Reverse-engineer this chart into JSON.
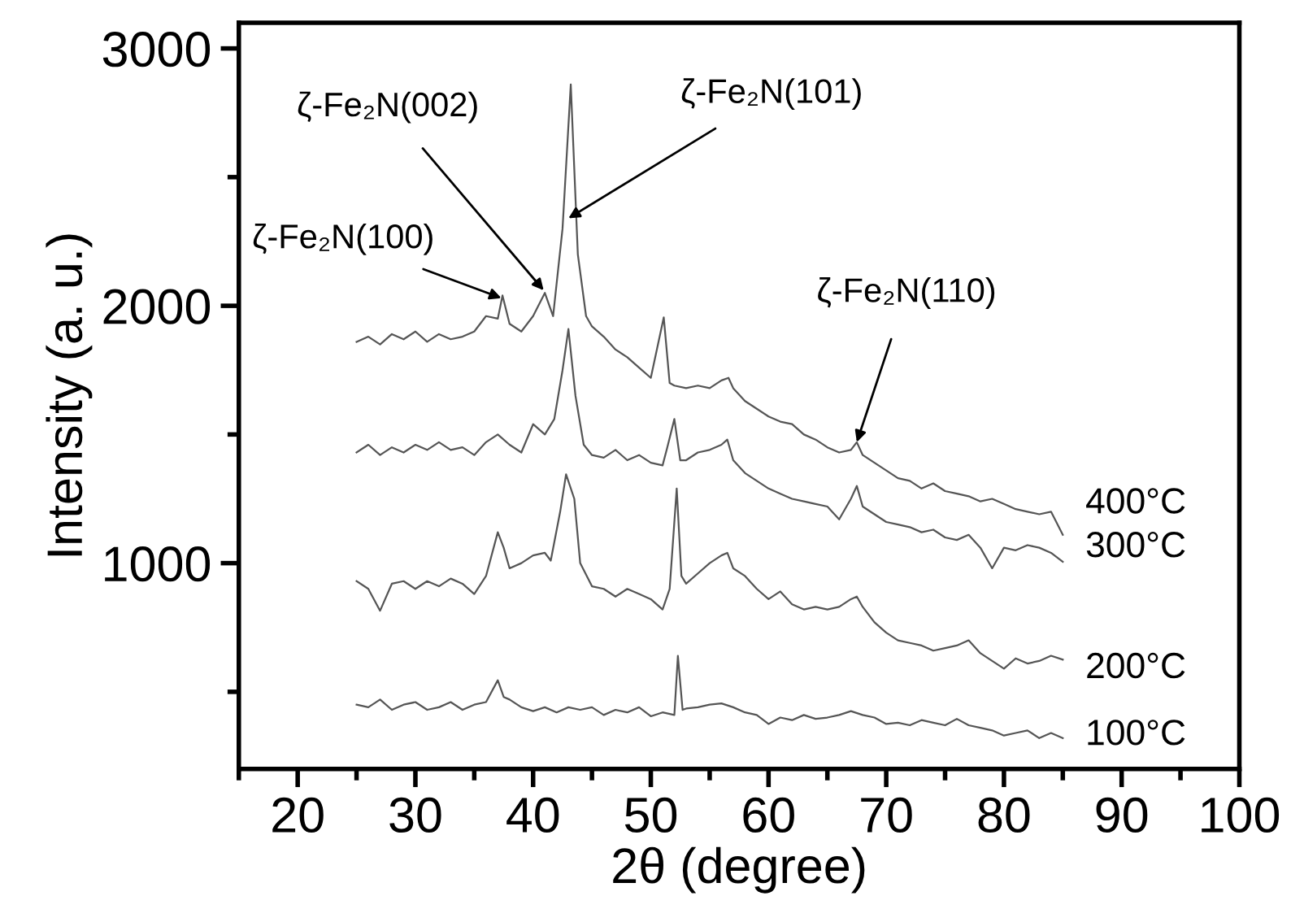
{
  "chart_data": {
    "type": "line",
    "xlabel": "2θ (degree)",
    "ylabel": "Intensity (a. u.)",
    "xlim": [
      15,
      100
    ],
    "xticks": [
      20,
      30,
      40,
      50,
      60,
      70,
      80,
      90,
      100
    ],
    "ylim": [
      200,
      3100
    ],
    "yticks": [
      1000,
      2000,
      3000
    ],
    "grid": false,
    "legend": false,
    "marker": "none",
    "line_style": "solid",
    "annotations": [
      {
        "text": "ζ-Fe₂N(100)",
        "x": 37.3,
        "y": 2030
      },
      {
        "text": "ζ-Fe₂N(002)",
        "x": 40.9,
        "y": 2060
      },
      {
        "text": "ζ-Fe₂N(101)",
        "x": 43.0,
        "y": 2340
      },
      {
        "text": "ζ-Fe₂N(110)",
        "x": 67.5,
        "y": 1470
      }
    ],
    "series": [
      {
        "name": "400°C",
        "color": "#555555",
        "x": [
          25,
          26,
          27,
          28,
          29,
          30,
          31,
          32,
          33,
          34,
          35,
          36,
          37,
          37.4,
          38,
          39,
          40,
          41,
          41.7,
          42.5,
          43.2,
          43.8,
          44.5,
          45,
          46,
          47,
          48,
          49,
          50,
          51.1,
          51.6,
          52,
          53,
          54,
          55,
          56,
          56.6,
          57,
          58,
          59,
          60,
          61,
          62,
          63,
          64,
          65,
          66,
          67,
          67.5,
          68,
          69,
          70,
          71,
          72,
          73,
          74,
          75,
          76,
          77,
          78,
          79,
          80,
          81,
          82,
          83,
          84,
          85
        ],
        "values": [
          1860,
          1880,
          1850,
          1890,
          1870,
          1900,
          1860,
          1890,
          1870,
          1880,
          1900,
          1960,
          1950,
          2040,
          1930,
          1900,
          1960,
          2050,
          1960,
          2300,
          2860,
          2200,
          1960,
          1920,
          1880,
          1830,
          1800,
          1760,
          1720,
          1955,
          1700,
          1690,
          1680,
          1690,
          1680,
          1710,
          1720,
          1680,
          1630,
          1600,
          1570,
          1550,
          1540,
          1500,
          1480,
          1450,
          1430,
          1440,
          1470,
          1420,
          1390,
          1360,
          1330,
          1320,
          1290,
          1310,
          1280,
          1270,
          1260,
          1240,
          1250,
          1230,
          1210,
          1200,
          1190,
          1200,
          1110
        ]
      },
      {
        "name": "300°C",
        "color": "#555555",
        "x": [
          25,
          26,
          27,
          28,
          29,
          30,
          31,
          32,
          33,
          34,
          35,
          36,
          37,
          38,
          39,
          40,
          41,
          41.8,
          42.5,
          43,
          43.6,
          44.3,
          45,
          46,
          47,
          48,
          49,
          50,
          51,
          51.4,
          52,
          52.5,
          53,
          54,
          55,
          56,
          56.5,
          57,
          58,
          59,
          60,
          61,
          62,
          63,
          64,
          65,
          66,
          67,
          67.5,
          68,
          69,
          70,
          71,
          72,
          73,
          74,
          75,
          76,
          77,
          78,
          79,
          80,
          81,
          82,
          83,
          84,
          85
        ],
        "values": [
          1430,
          1460,
          1420,
          1450,
          1430,
          1460,
          1440,
          1470,
          1440,
          1450,
          1420,
          1470,
          1500,
          1460,
          1430,
          1540,
          1500,
          1560,
          1750,
          1910,
          1650,
          1460,
          1420,
          1410,
          1440,
          1400,
          1420,
          1390,
          1380,
          1450,
          1560,
          1400,
          1400,
          1430,
          1440,
          1460,
          1480,
          1400,
          1350,
          1320,
          1290,
          1270,
          1250,
          1240,
          1230,
          1220,
          1170,
          1250,
          1300,
          1220,
          1190,
          1160,
          1150,
          1140,
          1120,
          1130,
          1100,
          1090,
          1110,
          1060,
          980,
          1060,
          1050,
          1070,
          1060,
          1040,
          1005
        ]
      },
      {
        "name": "200°C",
        "color": "#555555",
        "x": [
          25,
          26,
          27,
          28,
          29,
          30,
          31,
          32,
          33,
          34,
          35,
          36,
          37,
          37.5,
          38,
          39,
          40,
          41,
          41.5,
          42.3,
          42.8,
          43.5,
          44,
          45,
          46,
          47,
          48,
          49,
          50,
          51,
          51.6,
          52.2,
          52.6,
          53,
          54,
          55,
          56,
          56.5,
          57,
          58,
          59,
          60,
          61,
          62,
          63,
          64,
          65,
          66,
          67,
          67.5,
          68,
          69,
          70,
          71,
          72,
          73,
          74,
          75,
          76,
          77,
          78,
          79,
          80,
          81,
          82,
          83,
          84,
          85
        ],
        "values": [
          930,
          900,
          815,
          920,
          930,
          900,
          930,
          910,
          940,
          920,
          880,
          950,
          1120,
          1060,
          980,
          1000,
          1030,
          1040,
          1010,
          1200,
          1345,
          1250,
          1000,
          910,
          900,
          870,
          900,
          880,
          860,
          820,
          900,
          1290,
          950,
          920,
          960,
          1000,
          1030,
          1040,
          980,
          950,
          900,
          860,
          890,
          840,
          820,
          830,
          820,
          830,
          860,
          870,
          830,
          770,
          730,
          700,
          690,
          680,
          660,
          670,
          680,
          700,
          650,
          620,
          590,
          630,
          610,
          620,
          640,
          625
        ]
      },
      {
        "name": "100°C",
        "color": "#555555",
        "x": [
          25,
          26,
          27,
          28,
          29,
          30,
          31,
          32,
          33,
          34,
          35,
          36,
          37,
          37.5,
          38,
          39,
          40,
          41,
          42,
          43,
          44,
          45,
          46,
          47,
          48,
          49,
          50,
          51,
          52,
          52.3,
          52.7,
          53,
          54,
          55,
          56,
          57,
          58,
          59,
          60,
          61,
          62,
          63,
          64,
          65,
          66,
          67,
          68,
          69,
          70,
          71,
          72,
          73,
          74,
          75,
          76,
          77,
          78,
          79,
          80,
          81,
          82,
          83,
          84,
          85
        ],
        "values": [
          450,
          440,
          470,
          430,
          450,
          460,
          430,
          440,
          460,
          430,
          450,
          460,
          545,
          480,
          470,
          440,
          425,
          440,
          420,
          440,
          430,
          440,
          410,
          430,
          420,
          440,
          405,
          420,
          410,
          640,
          430,
          435,
          440,
          450,
          455,
          440,
          420,
          410,
          375,
          400,
          390,
          410,
          395,
          400,
          410,
          425,
          410,
          400,
          375,
          380,
          370,
          390,
          380,
          370,
          395,
          370,
          360,
          350,
          330,
          340,
          350,
          320,
          340,
          320
        ]
      }
    ]
  }
}
